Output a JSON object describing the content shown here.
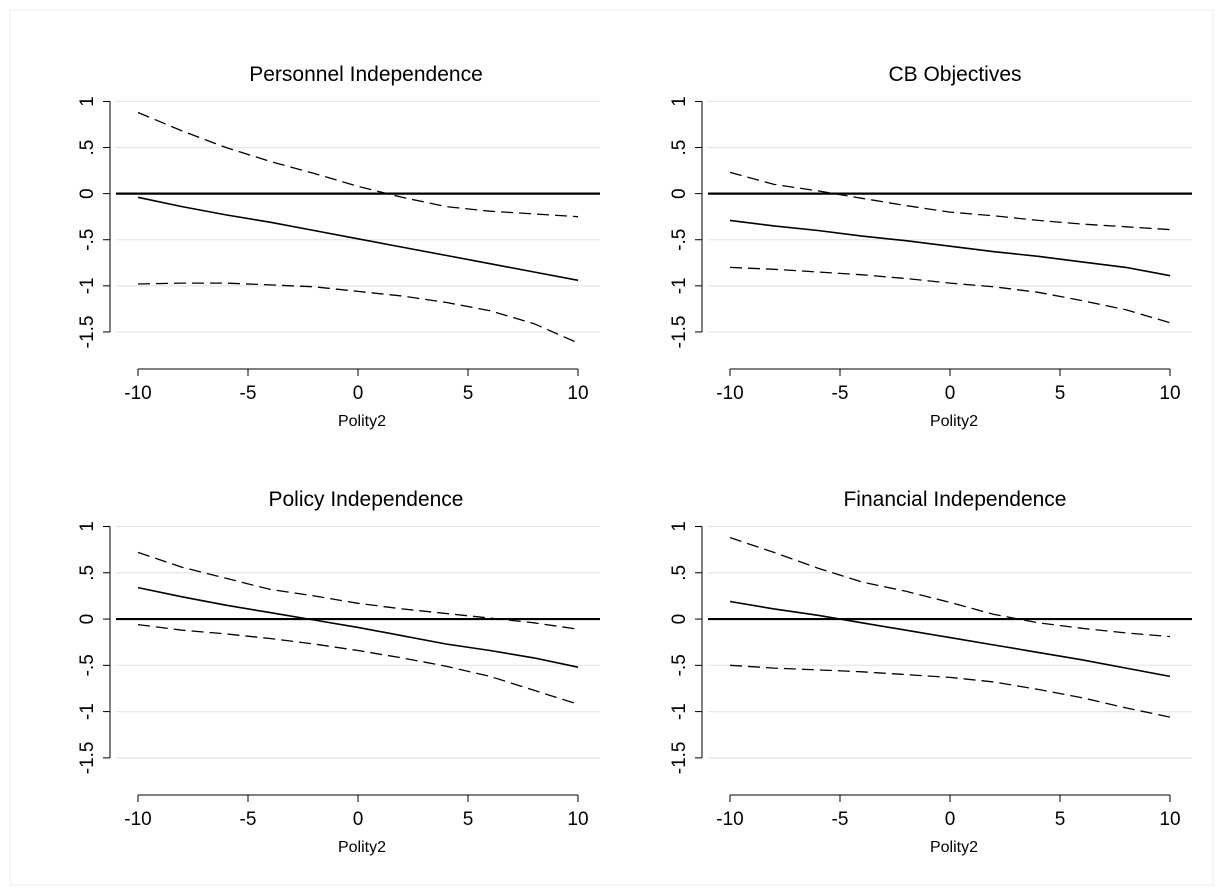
{
  "chart_data": [
    {
      "type": "line",
      "title": "Personnel Independence",
      "xlabel": "Polity2",
      "ylabel": "",
      "xlim": [
        -11,
        11
      ],
      "ylim": [
        -1.75,
        1.2
      ],
      "xticks": [
        -10,
        -5,
        0,
        5,
        10
      ],
      "xtick_labels": [
        "-10",
        "-5",
        "0",
        "5",
        "10"
      ],
      "yticks": [
        1,
        0.5,
        0,
        -0.5,
        -1,
        -1.5
      ],
      "ytick_labels": [
        "1",
        ".5",
        "0",
        "-.5",
        "-1",
        "-1.5"
      ],
      "grid": true,
      "x": [
        -10,
        -8,
        -6,
        -4,
        -2,
        0,
        2,
        4,
        6,
        8,
        10
      ],
      "series": [
        {
          "style": "solid",
          "values": [
            -0.04,
            -0.14,
            -0.23,
            -0.31,
            -0.4,
            -0.49,
            -0.58,
            -0.67,
            -0.76,
            -0.85,
            -0.94
          ]
        },
        {
          "style": "dashed",
          "values": [
            0.88,
            0.68,
            0.5,
            0.35,
            0.22,
            0.08,
            -0.04,
            -0.14,
            -0.19,
            -0.22,
            -0.25
          ]
        },
        {
          "style": "dashed",
          "values": [
            -0.98,
            -0.97,
            -0.97,
            -0.99,
            -1.01,
            -1.06,
            -1.11,
            -1.18,
            -1.27,
            -1.41,
            -1.62
          ]
        }
      ],
      "reference_line": {
        "y": 0
      }
    },
    {
      "type": "line",
      "title": "CB Objectives",
      "xlabel": "Polity2",
      "ylabel": "",
      "xlim": [
        -11,
        11
      ],
      "ylim": [
        -1.75,
        1.2
      ],
      "xticks": [
        -10,
        -5,
        0,
        5,
        10
      ],
      "xtick_labels": [
        "-10",
        "-5",
        "0",
        "5",
        "10"
      ],
      "yticks": [
        1,
        0.5,
        0,
        -0.5,
        -1,
        -1.5
      ],
      "ytick_labels": [
        "1",
        ".5",
        "0",
        "-.5",
        "-1",
        "-1.5"
      ],
      "grid": true,
      "x": [
        -10,
        -8,
        -6,
        -4,
        -2,
        0,
        2,
        4,
        6,
        8,
        10
      ],
      "series": [
        {
          "style": "solid",
          "values": [
            -0.29,
            -0.35,
            -0.4,
            -0.46,
            -0.51,
            -0.57,
            -0.63,
            -0.68,
            -0.74,
            -0.8,
            -0.89
          ]
        },
        {
          "style": "dashed",
          "values": [
            0.23,
            0.1,
            0.03,
            -0.05,
            -0.13,
            -0.2,
            -0.24,
            -0.29,
            -0.33,
            -0.36,
            -0.39
          ]
        },
        {
          "style": "dashed",
          "values": [
            -0.8,
            -0.82,
            -0.85,
            -0.88,
            -0.92,
            -0.97,
            -1.01,
            -1.07,
            -1.16,
            -1.26,
            -1.4
          ]
        }
      ],
      "reference_line": {
        "y": 0
      }
    },
    {
      "type": "line",
      "title": "Policy Independence",
      "xlabel": "Polity2",
      "ylabel": "",
      "xlim": [
        -11,
        11
      ],
      "ylim": [
        -1.75,
        1.2
      ],
      "xticks": [
        -10,
        -5,
        0,
        5,
        10
      ],
      "xtick_labels": [
        "-10",
        "-5",
        "0",
        "5",
        "10"
      ],
      "yticks": [
        1,
        0.5,
        0,
        -0.5,
        -1,
        -1.5
      ],
      "ytick_labels": [
        "1",
        ".5",
        "0",
        "-.5",
        "-1",
        "-1.5"
      ],
      "grid": true,
      "x": [
        -10,
        -8,
        -6,
        -4,
        -2,
        0,
        2,
        4,
        6,
        8,
        10
      ],
      "series": [
        {
          "style": "solid",
          "values": [
            0.34,
            0.24,
            0.15,
            0.07,
            -0.01,
            -0.09,
            -0.18,
            -0.27,
            -0.34,
            -0.42,
            -0.52
          ]
        },
        {
          "style": "dashed",
          "values": [
            0.72,
            0.56,
            0.44,
            0.32,
            0.25,
            0.17,
            0.11,
            0.06,
            0.01,
            -0.04,
            -0.11
          ]
        },
        {
          "style": "dashed",
          "values": [
            -0.06,
            -0.12,
            -0.16,
            -0.21,
            -0.27,
            -0.34,
            -0.42,
            -0.51,
            -0.62,
            -0.77,
            -0.92
          ]
        }
      ],
      "reference_line": {
        "y": 0
      }
    },
    {
      "type": "line",
      "title": "Financial Independence",
      "xlabel": "Polity2",
      "ylabel": "",
      "xlim": [
        -11,
        11
      ],
      "ylim": [
        -1.75,
        1.2
      ],
      "xticks": [
        -10,
        -5,
        0,
        5,
        10
      ],
      "xtick_labels": [
        "-10",
        "-5",
        "0",
        "5",
        "10"
      ],
      "yticks": [
        1,
        0.5,
        0,
        -0.5,
        -1,
        -1.5
      ],
      "ytick_labels": [
        "1",
        ".5",
        "0",
        "-.5",
        "-1",
        "-1.5"
      ],
      "grid": true,
      "x": [
        -10,
        -8,
        -6,
        -4,
        -2,
        0,
        2,
        4,
        6,
        8,
        10
      ],
      "series": [
        {
          "style": "solid",
          "values": [
            0.19,
            0.11,
            0.04,
            -0.04,
            -0.12,
            -0.2,
            -0.28,
            -0.36,
            -0.44,
            -0.53,
            -0.62
          ]
        },
        {
          "style": "dashed",
          "values": [
            0.88,
            0.72,
            0.55,
            0.4,
            0.3,
            0.18,
            0.05,
            -0.04,
            -0.1,
            -0.15,
            -0.19
          ]
        },
        {
          "style": "dashed",
          "values": [
            -0.5,
            -0.53,
            -0.55,
            -0.57,
            -0.6,
            -0.63,
            -0.68,
            -0.76,
            -0.85,
            -0.96,
            -1.06
          ]
        }
      ],
      "reference_line": {
        "y": 0
      }
    }
  ]
}
